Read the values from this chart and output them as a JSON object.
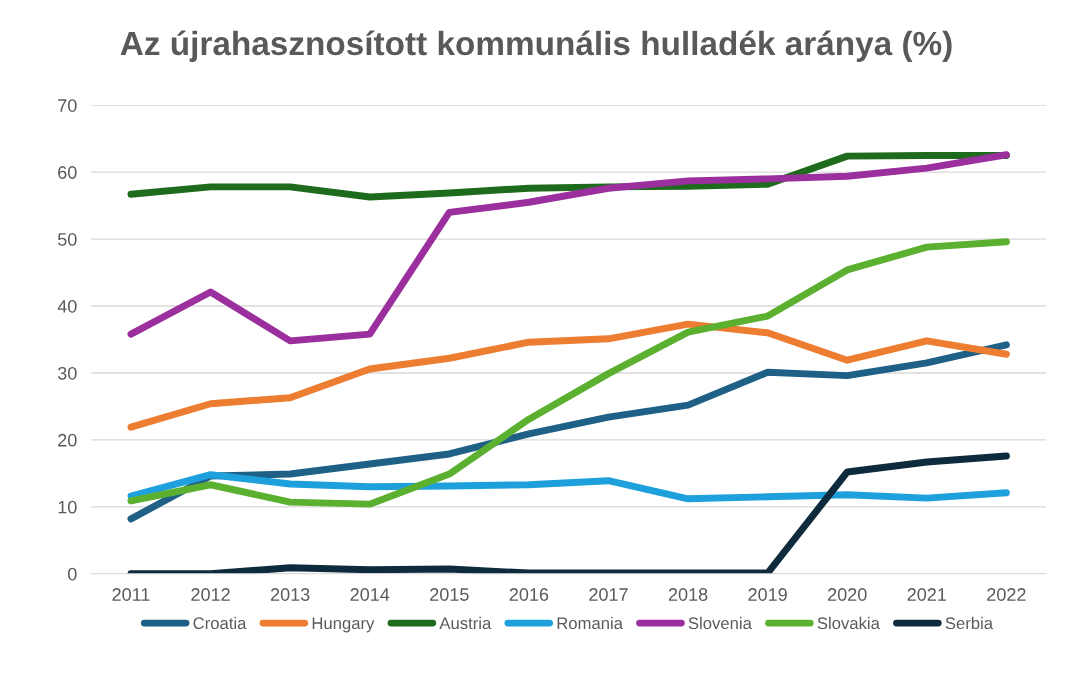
{
  "chart_data": {
    "type": "line",
    "title": "Az újrahasznosított kommunális hulladék aránya (%)",
    "categories": [
      "2011",
      "2012",
      "2013",
      "2014",
      "2015",
      "2016",
      "2017",
      "2018",
      "2019",
      "2020",
      "2021",
      "2022"
    ],
    "series": [
      {
        "name": "Croatia",
        "color": "#1f6087",
        "values": [
          8.2,
          14.6,
          14.9,
          16.4,
          17.9,
          20.9,
          23.4,
          25.2,
          30.1,
          29.6,
          31.5,
          34.2
        ]
      },
      {
        "name": "Hungary",
        "color": "#ed7d31",
        "values": [
          21.9,
          25.4,
          26.3,
          30.6,
          32.2,
          34.6,
          35.1,
          37.3,
          36.0,
          31.9,
          34.8,
          32.8
        ]
      },
      {
        "name": "Austria",
        "color": "#1e6b1e",
        "values": [
          56.7,
          57.8,
          57.8,
          56.3,
          56.9,
          57.6,
          57.8,
          57.9,
          58.2,
          62.4,
          62.5,
          62.5
        ]
      },
      {
        "name": "Romania",
        "color": "#1ea0dc",
        "values": [
          11.6,
          14.8,
          13.4,
          13.0,
          13.1,
          13.3,
          13.9,
          11.2,
          11.5,
          11.8,
          11.3,
          12.1
        ]
      },
      {
        "name": "Slovenia",
        "color": "#9b2f9e",
        "values": [
          35.8,
          42.1,
          34.8,
          35.8,
          54.0,
          55.5,
          57.6,
          58.7,
          59.0,
          59.4,
          60.6,
          62.6
        ]
      },
      {
        "name": "Slovakia",
        "color": "#5bb030",
        "values": [
          10.9,
          13.3,
          10.7,
          10.4,
          14.9,
          23.1,
          29.9,
          36.1,
          38.5,
          45.4,
          48.8,
          49.6
        ]
      },
      {
        "name": "Serbia",
        "color": "#0e2a3d",
        "values": [
          0,
          0,
          0.9,
          0.6,
          0.7,
          0.1,
          0.1,
          0.1,
          0.1,
          15.2,
          16.7,
          17.6
        ]
      }
    ],
    "ylim": [
      0,
      70
    ],
    "yticks": [
      0,
      10,
      20,
      30,
      40,
      50,
      60,
      70
    ],
    "grid": "y",
    "legend": "bottom",
    "marker": "none",
    "line_style": "solid"
  }
}
